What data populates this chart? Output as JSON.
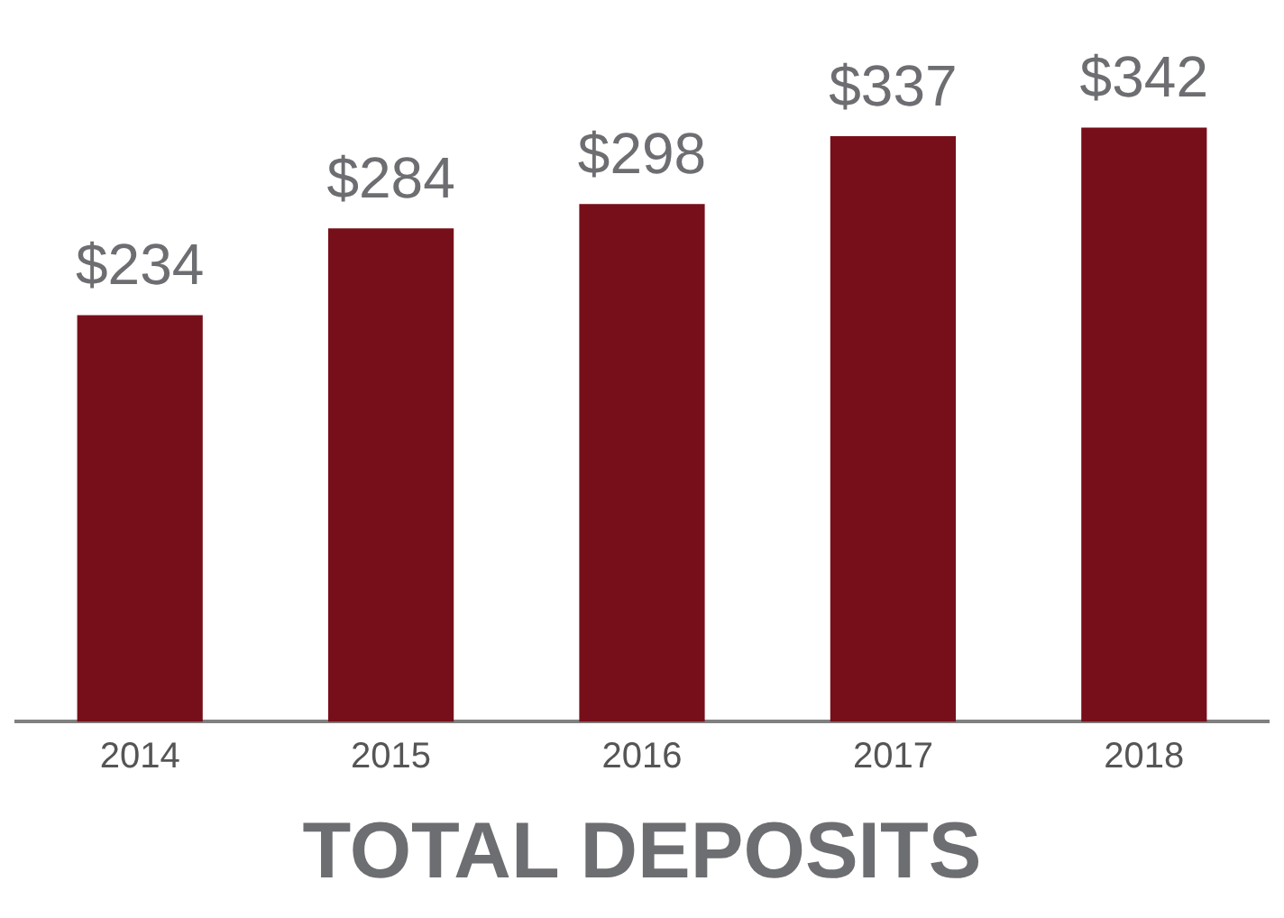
{
  "chart_data": {
    "type": "bar",
    "title": "TOTAL DEPOSITS",
    "categories": [
      "2014",
      "2015",
      "2016",
      "2017",
      "2018"
    ],
    "values": [
      234,
      284,
      298,
      337,
      342
    ],
    "value_labels": [
      "$234",
      "$284",
      "$298",
      "$337",
      "$342"
    ],
    "color": "#760f19",
    "grid": false,
    "legend": false,
    "tick_labels": "x"
  }
}
